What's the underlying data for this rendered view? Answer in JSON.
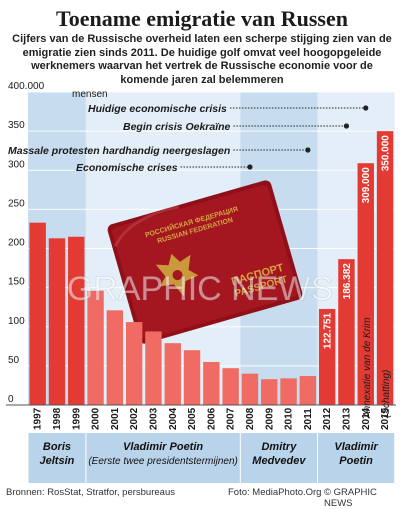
{
  "title": "Toename emigratie van Russen",
  "subtitle": "Cijfers van de Russische overheid laten een scherpe stijging zien van de emigratie zien sinds 2011. De huidige golf omvat veel hoogopgeleide werknemers waarvan het vertrek de Russische economie voor de komende jaren zal belemmeren",
  "chart_data": {
    "type": "bar",
    "ylabel": "mensen",
    "ylim": [
      0,
      400000
    ],
    "yticks": [
      0,
      50,
      100,
      150,
      200,
      250,
      300,
      350,
      "400.000"
    ],
    "categories": [
      "1997",
      "1998",
      "1999",
      "2000",
      "2001",
      "2002",
      "2003",
      "2004",
      "2005",
      "2006",
      "2007",
      "2008",
      "2009",
      "2010",
      "2011",
      "2012",
      "2013",
      "2014",
      "2015"
    ],
    "values": [
      233000,
      213000,
      215000,
      146000,
      121000,
      106000,
      94000,
      79000,
      70000,
      55000,
      47000,
      40000,
      33000,
      34000,
      37000,
      122751,
      186382,
      309000,
      350000
    ],
    "value_labels": [
      "",
      "",
      "",
      "",
      "",
      "",
      "",
      "",
      "",
      "",
      "",
      "",
      "",
      "",
      "",
      "122.751",
      "186.382",
      "309.000",
      "350.000"
    ],
    "colors": {
      "bar": "#e33a33",
      "bar_light": "#ef6b63",
      "band": "#c7dcef",
      "band_light": "#e3eef8",
      "band_label": "#b9d3ea"
    },
    "annotations": [
      {
        "text": "Huidige economische crisis",
        "year": "2014"
      },
      {
        "text": "Begin crisis Oekraïne",
        "year": "2013"
      },
      {
        "text": "Massale protesten hardhandig neergeslagen",
        "year": "2011"
      },
      {
        "text": "Economische crises",
        "year": "2008"
      }
    ],
    "side_note": {
      "line1": "Annexatie van de Krim",
      "line2": "(Schatting)"
    },
    "periods": [
      {
        "name": "Boris Jeltsin",
        "from": "1997",
        "to": "1999"
      },
      {
        "name": "Vladimir Poetin",
        "sub": "(Eerste twee presidentstermijnen)",
        "from": "2000",
        "to": "2007"
      },
      {
        "name": "Dmitry Medvedev",
        "from": "2008",
        "to": "2011"
      },
      {
        "name": "Vladimir Poetin",
        "from": "2012",
        "to": "2015"
      }
    ]
  },
  "watermark": "GRAPHIC NEWS",
  "passport": {
    "line1": "РОССИЙСКАЯ ФЕДЕРАЦИЯ",
    "line2": "RUSSIAN FEDERATION",
    "line3": "ПАСПОРТ",
    "line4": "PASSPORT"
  },
  "footer": {
    "sources": "Bronnen: RosStat, Stratfor, persbureaus",
    "photo": "Foto: MediaPhoto.Org",
    "credit": "© GRAPHIC NEWS"
  }
}
